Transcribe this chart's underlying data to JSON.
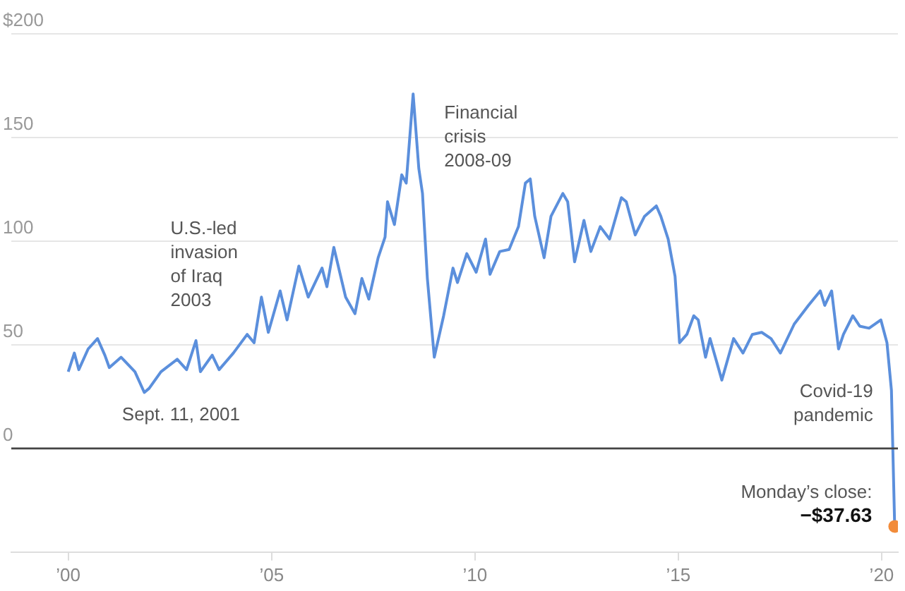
{
  "chart_data": {
    "type": "line",
    "xlim": [
      1998.6,
      2020.4
    ],
    "ylim": [
      -50,
      200
    ],
    "xticks": [
      {
        "value": 2000,
        "label": "’00"
      },
      {
        "value": 2005,
        "label": "’05"
      },
      {
        "value": 2010,
        "label": "’10"
      },
      {
        "value": 2015,
        "label": "’15"
      },
      {
        "value": 2020,
        "label": "’20"
      }
    ],
    "yticks": [
      {
        "value": 0,
        "label": "0"
      },
      {
        "value": 50,
        "label": "50"
      },
      {
        "value": 100,
        "label": "100"
      },
      {
        "value": 150,
        "label": "150"
      },
      {
        "value": 200,
        "label": "$200"
      }
    ],
    "grid": "y",
    "legend": false,
    "series": [
      {
        "type": "line",
        "color": "#5b8fdc",
        "marker": "none",
        "x": [
          2000.0,
          2000.15,
          2000.26,
          2000.49,
          2000.72,
          2000.9,
          2001.01,
          2001.3,
          2001.64,
          2001.87,
          2001.99,
          2002.28,
          2002.68,
          2002.91,
          2003.14,
          2003.25,
          2003.54,
          2003.71,
          2004.06,
          2004.4,
          2004.57,
          2004.75,
          2004.92,
          2005.21,
          2005.38,
          2005.67,
          2005.9,
          2006.24,
          2006.36,
          2006.53,
          2006.82,
          2007.05,
          2007.22,
          2007.39,
          2007.62,
          2007.79,
          2007.85,
          2008.02,
          2008.2,
          2008.31,
          2008.48,
          2008.62,
          2008.71,
          2008.83,
          2009.0,
          2009.23,
          2009.46,
          2009.57,
          2009.8,
          2010.03,
          2010.26,
          2010.37,
          2010.61,
          2010.84,
          2011.07,
          2011.24,
          2011.36,
          2011.47,
          2011.7,
          2011.87,
          2012.16,
          2012.28,
          2012.45,
          2012.68,
          2012.85,
          2013.08,
          2013.31,
          2013.6,
          2013.72,
          2013.94,
          2014.17,
          2014.46,
          2014.57,
          2014.75,
          2014.92,
          2015.03,
          2015.21,
          2015.38,
          2015.49,
          2015.67,
          2015.78,
          2016.07,
          2016.36,
          2016.59,
          2016.82,
          2017.05,
          2017.28,
          2017.51,
          2017.85,
          2018.2,
          2018.49,
          2018.6,
          2018.77,
          2018.94,
          2019.06,
          2019.29,
          2019.46,
          2019.69,
          2019.98,
          2020.13,
          2020.24,
          2020.32
        ],
        "values": [
          37,
          46,
          38,
          48,
          53,
          45,
          39,
          44,
          37,
          27,
          29,
          37,
          43,
          38,
          52,
          37,
          45,
          38,
          46,
          55,
          51,
          73,
          56,
          76,
          62,
          88,
          73,
          87,
          78,
          97,
          73,
          65,
          82,
          72,
          92,
          102,
          119,
          108,
          132,
          128,
          171,
          135,
          123,
          82,
          44,
          64,
          87,
          80,
          94,
          85,
          101,
          84,
          95,
          96,
          107,
          128,
          130,
          112,
          92,
          112,
          123,
          119,
          90,
          110,
          95,
          107,
          101,
          121,
          119,
          103,
          112,
          117,
          112,
          101,
          83,
          51,
          55,
          64,
          62,
          44,
          53,
          33,
          53,
          46,
          55,
          56,
          53,
          46,
          60,
          69,
          76,
          69,
          76,
          48,
          55,
          64,
          59,
          58,
          62,
          51,
          28,
          -37.63
        ]
      },
      {
        "type": "scatter",
        "color": "#f28c3b",
        "marker": "circle",
        "x": [
          2020.32
        ],
        "values": [
          -37.63
        ]
      }
    ],
    "ref_lines": [
      {
        "axis": "y",
        "value": 0,
        "color": "#444444"
      }
    ],
    "annotations": [
      {
        "text": "Sept. 11, 2001",
        "x": 2001.87,
        "y": 27
      },
      {
        "text": "U.S.-led\ninvasion\nof Iraq\n2003",
        "x": 2003.14,
        "y": 52
      },
      {
        "text": "Financial\ncrisis\n2008-09",
        "x": 2008.48,
        "y": 171
      },
      {
        "text": "Covid-19\npandemic",
        "x": 2020.24,
        "y": 28
      },
      {
        "text": "Monday’s close:\n−$37.63",
        "x": 2020.32,
        "y": -37.63
      }
    ]
  }
}
